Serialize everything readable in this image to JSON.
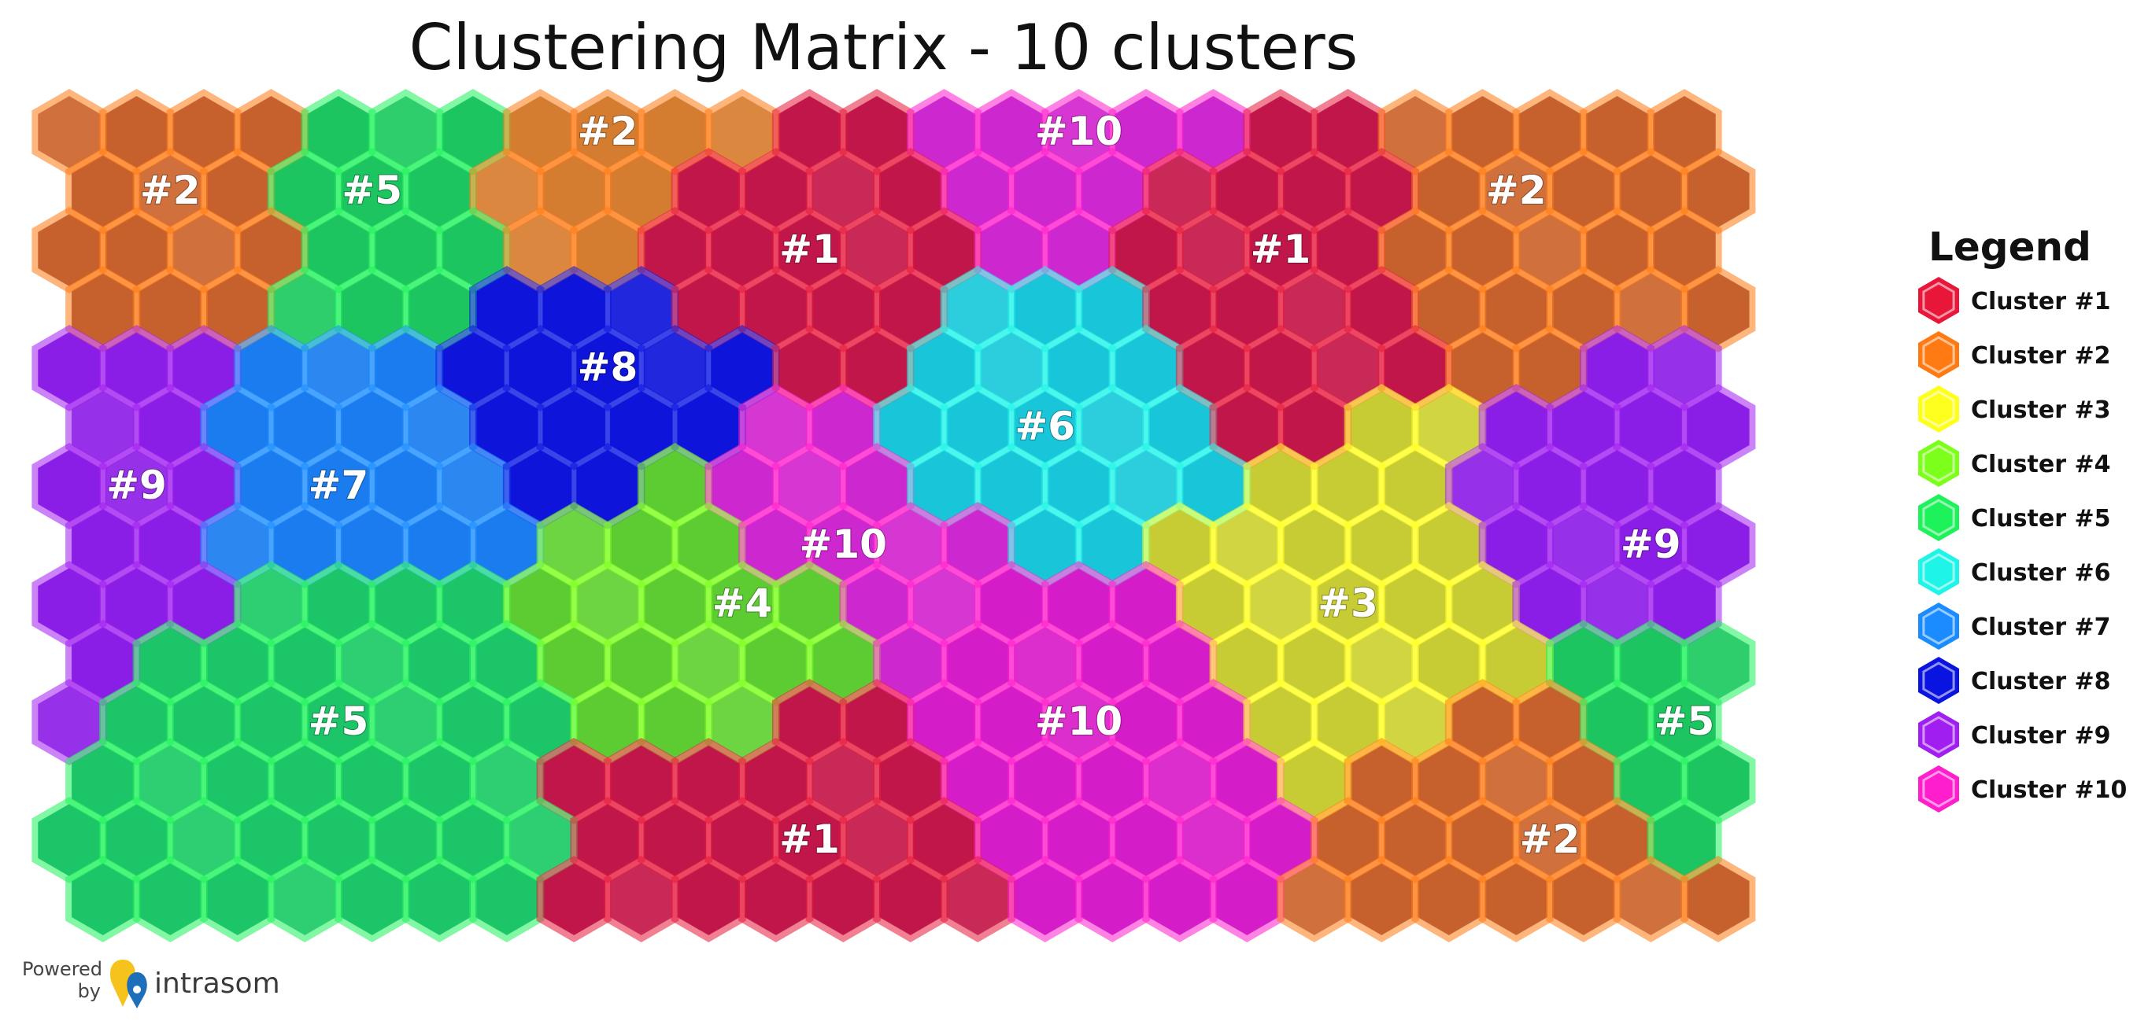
{
  "chart_data": {
    "type": "heatmap",
    "subtype": "self-organizing-map hexagonal cluster matrix",
    "title": "Clustering Matrix - 10 clusters",
    "n_clusters": 10,
    "grid": {
      "columns": 25,
      "rows": 14
    },
    "legend": {
      "title": "Legend",
      "placement": "right",
      "items": [
        {
          "label": "Cluster #1",
          "color": "#e8173a"
        },
        {
          "label": "Cluster #2",
          "color": "#ff7a12"
        },
        {
          "label": "Cluster #3",
          "color": "#ffff1e"
        },
        {
          "label": "Cluster #4",
          "color": "#7cff1a"
        },
        {
          "label": "Cluster #5",
          "color": "#1ef25a"
        },
        {
          "label": "Cluster #6",
          "color": "#1ef4e8"
        },
        {
          "label": "Cluster #7",
          "color": "#1a8cff"
        },
        {
          "label": "Cluster #8",
          "color": "#0a14e0"
        },
        {
          "label": "Cluster #9",
          "color": "#a01ef0"
        },
        {
          "label": "Cluster #10",
          "color": "#ff1ecc"
        }
      ]
    },
    "cluster_regions": [
      {
        "label": "#1",
        "cluster": 1,
        "col": 11,
        "row": 2,
        "fill": "#8c0a55"
      },
      {
        "label": "#1",
        "cluster": 1,
        "col": 18,
        "row": 2,
        "fill": "#8c0a55"
      },
      {
        "label": "#1",
        "cluster": 1,
        "col": 11,
        "row": 12,
        "fill": "#8c0a55"
      },
      {
        "label": "#2",
        "cluster": 2,
        "col": 1,
        "row": 1,
        "fill": "#7a3b48"
      },
      {
        "label": "#2",
        "cluster": 2,
        "col": 8,
        "row": 0,
        "fill": "#9a7a50"
      },
      {
        "label": "#2",
        "cluster": 2,
        "col": 21,
        "row": 1,
        "fill": "#7a3b48"
      },
      {
        "label": "#2",
        "cluster": 2,
        "col": 22,
        "row": 12,
        "fill": "#7a3b48"
      },
      {
        "label": "#3",
        "cluster": 3,
        "col": 19,
        "row": 8,
        "fill": "#7f8a48"
      },
      {
        "label": "#4",
        "cluster": 4,
        "col": 10,
        "row": 8,
        "fill": "#2e8a4a"
      },
      {
        "label": "#5",
        "cluster": 5,
        "col": 4,
        "row": 1,
        "fill": "#0f8a62"
      },
      {
        "label": "#5",
        "cluster": 5,
        "col": 4,
        "row": 10,
        "fill": "#0f8a72"
      },
      {
        "label": "#5",
        "cluster": 5,
        "col": 24,
        "row": 10,
        "fill": "#0f8a62"
      },
      {
        "label": "#6",
        "cluster": 6,
        "col": 14,
        "row": 5,
        "fill": "#0a86c4"
      },
      {
        "label": "#7",
        "cluster": 7,
        "col": 4,
        "row": 6,
        "fill": "#1060d8"
      },
      {
        "label": "#8",
        "cluster": 8,
        "col": 8,
        "row": 4,
        "fill": "#0a0ad0"
      },
      {
        "label": "#9",
        "cluster": 9,
        "col": 1,
        "row": 6,
        "fill": "#6a14d8"
      },
      {
        "label": "#9",
        "cluster": 9,
        "col": 23,
        "row": 7,
        "fill": "#6a14d8"
      },
      {
        "label": "#10",
        "cluster": 10,
        "col": 15,
        "row": 0,
        "fill": "#8c2ad0"
      },
      {
        "label": "#10",
        "cluster": 10,
        "col": 11,
        "row": 7,
        "fill": "#8c2ad0"
      },
      {
        "label": "#10",
        "cluster": 10,
        "col": 15,
        "row": 10,
        "fill": "#9a10c0"
      }
    ]
  },
  "branding": {
    "powered": "Powered",
    "by": "by",
    "name": "intrasom"
  }
}
